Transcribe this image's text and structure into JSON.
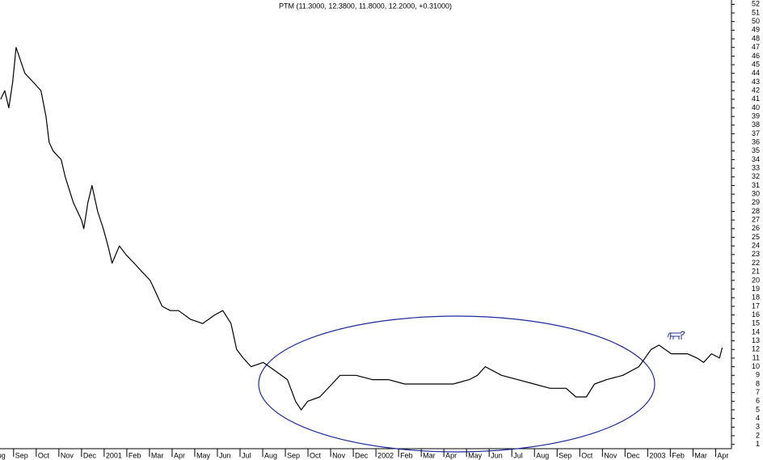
{
  "chart_data": {
    "type": "line",
    "title": "PTM (11.3000, 12.3800, 11.8000, 12.2000, +0.31000)",
    "x": [
      0.43,
      0.61,
      0.79,
      0.96,
      1.11,
      1.5,
      1.86,
      2.21,
      2.43,
      2.57,
      2.75,
      3.1,
      3.28,
      3.64,
      4.0,
      4.1,
      4.28,
      4.46,
      4.71,
      4.96,
      5.17,
      5.35,
      5.67,
      5.96,
      6.32,
      6.67,
      7.03,
      7.21,
      7.56,
      7.92,
      8.28,
      8.81,
      9.35,
      9.88,
      10.24,
      10.6,
      10.85,
      11.14,
      11.49,
      12.02,
      12.56,
      13.09,
      13.45,
      13.7,
      13.99,
      14.52,
      15.06,
      15.41,
      16.13,
      16.84,
      17.55,
      18.27,
      18.98,
      19.69,
      20.41,
      21.12,
      21.48,
      21.83,
      22.55,
      23.26,
      23.98,
      24.69,
      25.4,
      25.83,
      26.29,
      26.65,
      27.19,
      27.9,
      28.61,
      29.15,
      29.5,
      30.04,
      30.75,
      31.18,
      31.47,
      31.82,
      32.17,
      32.29
    ],
    "series": [
      {
        "name": "PTM",
        "color": "#000000",
        "values": [
          41,
          42,
          40,
          43,
          47,
          44,
          43,
          42,
          39,
          36,
          35,
          34,
          32,
          29,
          27,
          26,
          29,
          31,
          28,
          26,
          24,
          22,
          24,
          23,
          22,
          21,
          20,
          19,
          17,
          16.5,
          16.5,
          15.5,
          15,
          16,
          16.5,
          15,
          12,
          11,
          10,
          10.5,
          9.5,
          8.5,
          6,
          5,
          6,
          6.5,
          8,
          9,
          9,
          8.5,
          8.5,
          8,
          8,
          8,
          8,
          8.5,
          9,
          10,
          9,
          8.5,
          8,
          7.5,
          7.5,
          6.5,
          6.5,
          8,
          8.5,
          9,
          10,
          12,
          12.5,
          11.5,
          11.5,
          11,
          10.5,
          11.5,
          11,
          12.2
        ]
      }
    ],
    "xlim": [
      0.4,
      32.7
    ],
    "xticks": [
      {
        "value": 0,
        "label": "Aug"
      },
      {
        "value": 1,
        "label": "Sep"
      },
      {
        "value": 2,
        "label": "Oct"
      },
      {
        "value": 3,
        "label": "Nov"
      },
      {
        "value": 4,
        "label": "Dec"
      },
      {
        "value": 5,
        "label": "2001"
      },
      {
        "value": 6,
        "label": "Feb"
      },
      {
        "value": 7,
        "label": "Mar"
      },
      {
        "value": 8,
        "label": "Apr"
      },
      {
        "value": 9,
        "label": "May"
      },
      {
        "value": 10,
        "label": "Jun"
      },
      {
        "value": 11,
        "label": "Jul"
      },
      {
        "value": 12,
        "label": "Aug"
      },
      {
        "value": 13,
        "label": "Sep"
      },
      {
        "value": 14,
        "label": "Oct"
      },
      {
        "value": 15,
        "label": "Nov"
      },
      {
        "value": 16,
        "label": "Dec"
      },
      {
        "value": 17,
        "label": "2002"
      },
      {
        "value": 18,
        "label": "Feb"
      },
      {
        "value": 19,
        "label": "Mar"
      },
      {
        "value": 20,
        "label": "Apr"
      },
      {
        "value": 21,
        "label": "May"
      },
      {
        "value": 22,
        "label": "Jun"
      },
      {
        "value": 23,
        "label": "Jul"
      },
      {
        "value": 24,
        "label": "Aug"
      },
      {
        "value": 25,
        "label": "Sep"
      },
      {
        "value": 26,
        "label": "Oct"
      },
      {
        "value": 27,
        "label": "Nov"
      },
      {
        "value": 28,
        "label": "Dec"
      },
      {
        "value": 29,
        "label": "2003"
      },
      {
        "value": 30,
        "label": "Feb"
      },
      {
        "value": 31,
        "label": "Mar"
      },
      {
        "value": 32,
        "label": "Apr"
      }
    ],
    "ylim": [
      0.5,
      52.5
    ],
    "yticks": [
      1,
      2,
      3,
      4,
      5,
      6,
      7,
      8,
      9,
      10,
      11,
      12,
      13,
      14,
      15,
      16,
      17,
      18,
      19,
      20,
      21,
      22,
      23,
      24,
      25,
      26,
      27,
      28,
      29,
      30,
      31,
      32,
      33,
      34,
      35,
      36,
      37,
      38,
      39,
      40,
      41,
      42,
      43,
      44,
      45,
      46,
      47,
      48,
      49,
      50,
      51,
      52
    ],
    "grid": false
  }
}
